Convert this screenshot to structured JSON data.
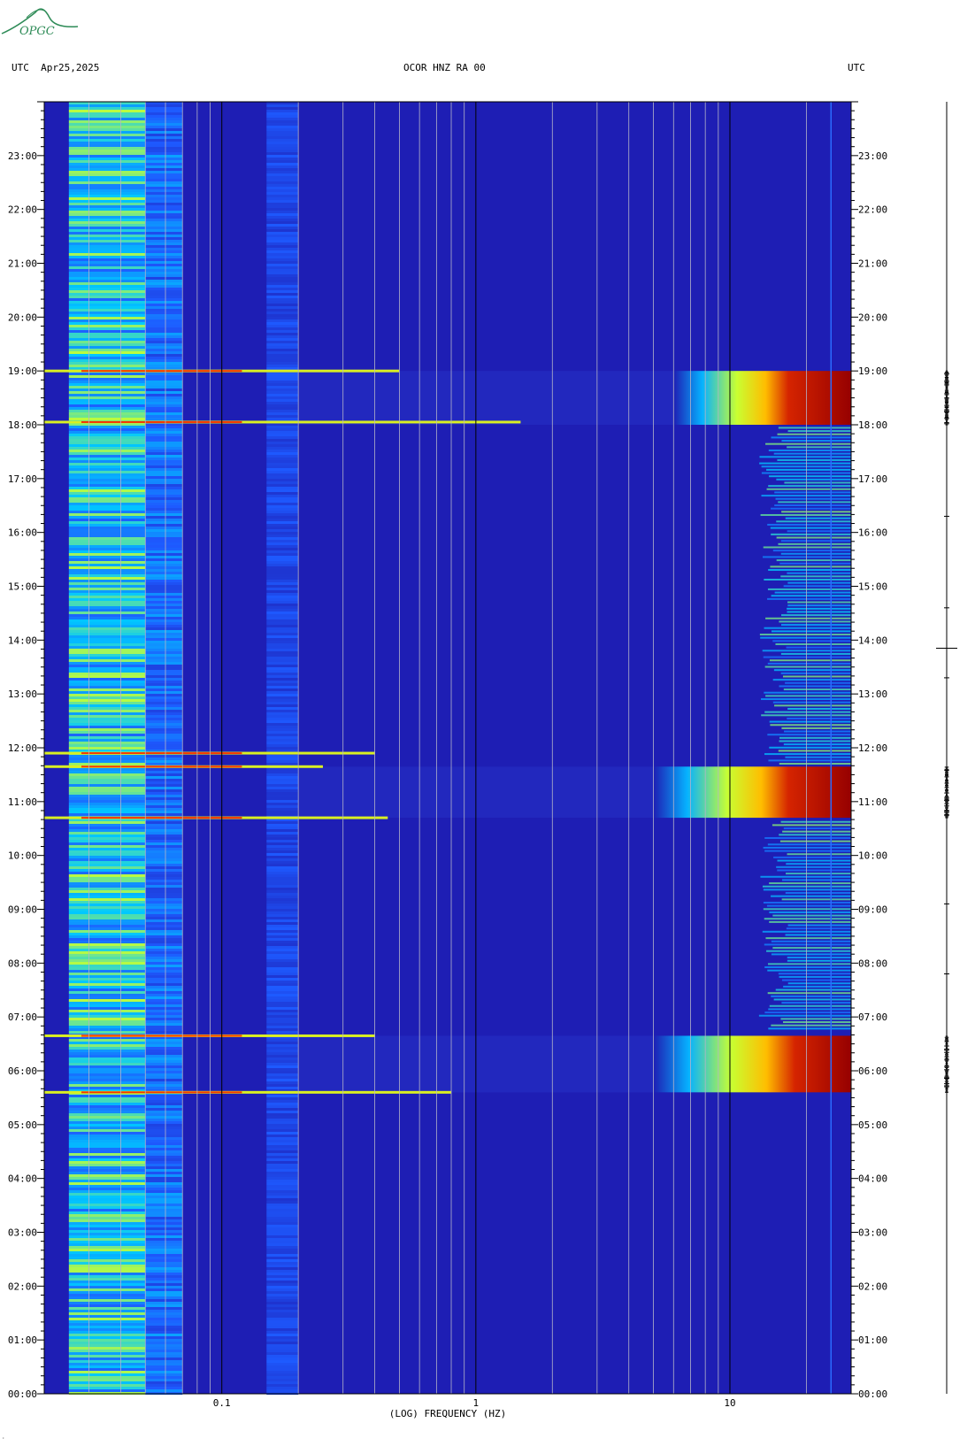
{
  "header": {
    "left_label": "UTC  Apr25,2025",
    "center_label": "OCOR HNZ RA 00",
    "right_label": "UTC"
  },
  "logo": {
    "text": "OPGC",
    "icon": "opgc-logo"
  },
  "chart_data": {
    "type": "heatmap",
    "title": "OCOR HNZ RA 00",
    "date": "Apr25,2025",
    "timezone": "UTC",
    "xlabel": "(LOG) FREQUENCY (HZ)",
    "x_scale": "log",
    "xlim": [
      0.02,
      30
    ],
    "x_ticks": [
      {
        "value": 0.1,
        "label": "0.1"
      },
      {
        "value": 1,
        "label": "1"
      },
      {
        "value": 10,
        "label": "10"
      }
    ],
    "y_unit": "hours UTC",
    "ylim": [
      0,
      24
    ],
    "y_tick_labels": [
      "00:00",
      "01:00",
      "02:00",
      "03:00",
      "04:00",
      "05:00",
      "06:00",
      "07:00",
      "08:00",
      "09:00",
      "10:00",
      "11:00",
      "12:00",
      "13:00",
      "14:00",
      "15:00",
      "16:00",
      "17:00",
      "18:00",
      "19:00",
      "20:00",
      "21:00",
      "22:00",
      "23:00"
    ],
    "colormap": [
      "#1e1eb4",
      "#1e5aff",
      "#00c8ff",
      "#c8ff32",
      "#ffc800",
      "#ff3c00",
      "#960000"
    ],
    "background_color": "#1e1eb4",
    "events": [
      {
        "start": 18.0,
        "end": 19.0,
        "strong_from_hz": 6,
        "peak_from_hz": 17
      },
      {
        "start": 10.7,
        "end": 11.65,
        "strong_from_hz": 5,
        "peak_from_hz": 17
      },
      {
        "start": 5.6,
        "end": 6.65,
        "strong_from_hz": 5,
        "peak_from_hz": 18
      }
    ],
    "wideband_lines": [
      {
        "time": 18.05,
        "to_hz": 1.5
      },
      {
        "time": 19.0,
        "to_hz": 0.5
      },
      {
        "time": 11.65,
        "to_hz": 0.25
      },
      {
        "time": 10.7,
        "to_hz": 0.45
      },
      {
        "time": 6.65,
        "to_hz": 0.4
      },
      {
        "time": 5.6,
        "to_hz": 0.8
      },
      {
        "time": 11.9,
        "to_hz": 0.4
      }
    ],
    "noise_bands": [
      {
        "from_hz": 0.025,
        "to_hz": 0.05,
        "level": 0.35
      },
      {
        "from_hz": 0.05,
        "to_hz": 0.07,
        "level": 0.2
      },
      {
        "from_hz": 0.15,
        "to_hz": 0.2,
        "level": 0.12
      }
    ]
  }
}
